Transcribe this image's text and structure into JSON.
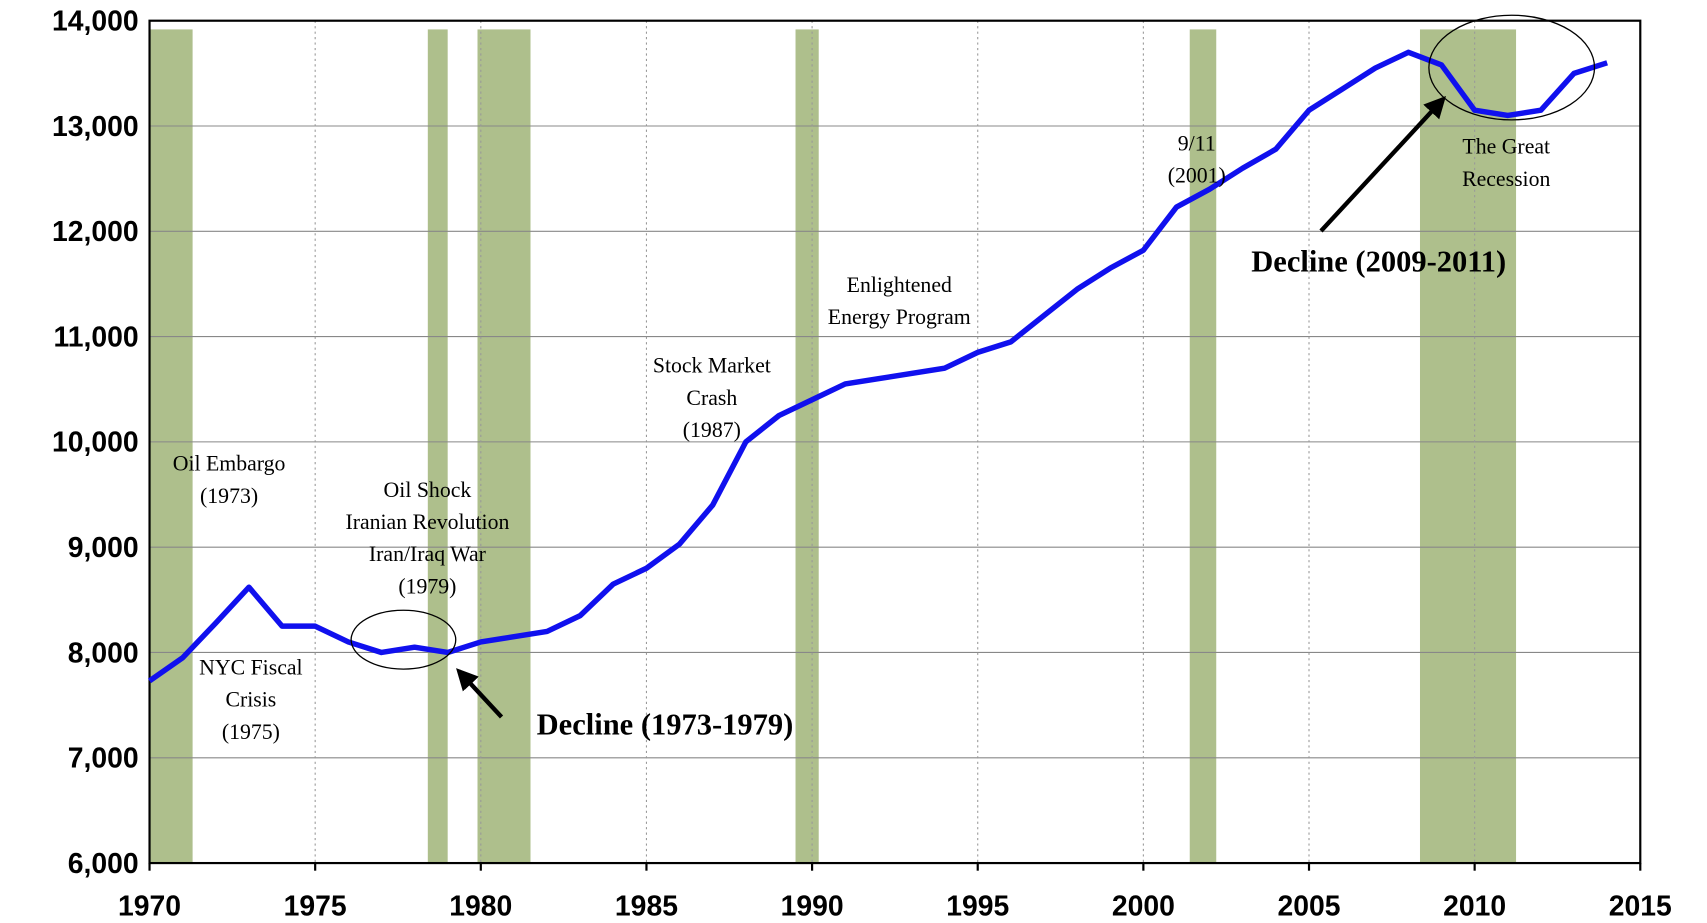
{
  "chart_data": {
    "type": "line",
    "x": [
      1970,
      1971,
      1972,
      1973,
      1974,
      1975,
      1976,
      1977,
      1978,
      1979,
      1980,
      1981,
      1982,
      1983,
      1984,
      1985,
      1986,
      1987,
      1988,
      1989,
      1990,
      1991,
      1992,
      1993,
      1994,
      1995,
      1996,
      1997,
      1998,
      1999,
      2000,
      2001,
      2002,
      2003,
      2004,
      2005,
      2006,
      2007,
      2008,
      2009,
      2010,
      2011,
      2012,
      2013,
      2014
    ],
    "series": [
      {
        "color": "#1010ee",
        "values": [
          7730,
          7950,
          8280,
          8620,
          8250,
          8250,
          8100,
          8000,
          8050,
          8000,
          8100,
          8150,
          8200,
          8350,
          8650,
          8800,
          9030,
          9400,
          10000,
          10250,
          10400,
          10550,
          10600,
          10650,
          10700,
          10850,
          10950,
          11200,
          11450,
          11650,
          11820,
          12230,
          12400,
          12600,
          12780,
          13150,
          13350,
          13550,
          13700,
          13580,
          13150,
          13100,
          13150,
          13500,
          13600
        ]
      }
    ],
    "xlim": [
      1970,
      2015
    ],
    "xticks": [
      1970,
      1975,
      1980,
      1985,
      1990,
      1995,
      2000,
      2005,
      2010,
      2015
    ],
    "ylim": [
      6000,
      14000
    ],
    "yticks": [
      {
        "value": 6000,
        "label": "6,000"
      },
      {
        "value": 7000,
        "label": "7,000"
      },
      {
        "value": 8000,
        "label": "8,000"
      },
      {
        "value": 9000,
        "label": "9,000"
      },
      {
        "value": 10000,
        "label": "10,000"
      },
      {
        "value": 11000,
        "label": "11,000"
      },
      {
        "value": 12000,
        "label": "12,000"
      },
      {
        "value": 13000,
        "label": "13,000"
      },
      {
        "value": 14000,
        "label": "14,000"
      }
    ],
    "grid": true,
    "shaded_periods": {
      "color": "#aebf8c",
      "periods": [
        [
          1970.0,
          1971.3
        ],
        [
          1978.4,
          1979.0
        ],
        [
          1979.9,
          1981.5
        ],
        [
          1989.5,
          1990.2
        ],
        [
          2001.4,
          2002.2
        ],
        [
          2008.35,
          2011.25
        ]
      ]
    },
    "annotations": [
      {
        "lines": [
          "Oil Embargo",
          "(1973)"
        ]
      },
      {
        "lines": [
          "NYC Fiscal",
          "Crisis",
          "(1975)"
        ]
      },
      {
        "lines": [
          "Oil Shock",
          "Iranian Revolution",
          "Iran/Iraq War",
          "(1979)"
        ]
      },
      {
        "lines": [
          "Stock Market",
          "Crash",
          "(1987)"
        ]
      },
      {
        "lines": [
          "Enlightened",
          "Energy Program"
        ]
      },
      {
        "lines": [
          "9/11",
          "(2001)"
        ]
      },
      {
        "lines": [
          "The Great",
          "Recession"
        ]
      },
      {
        "lines": [
          "Decline (1973-1979)"
        ]
      },
      {
        "lines": [
          "Decline (2009-2011)"
        ]
      }
    ]
  }
}
